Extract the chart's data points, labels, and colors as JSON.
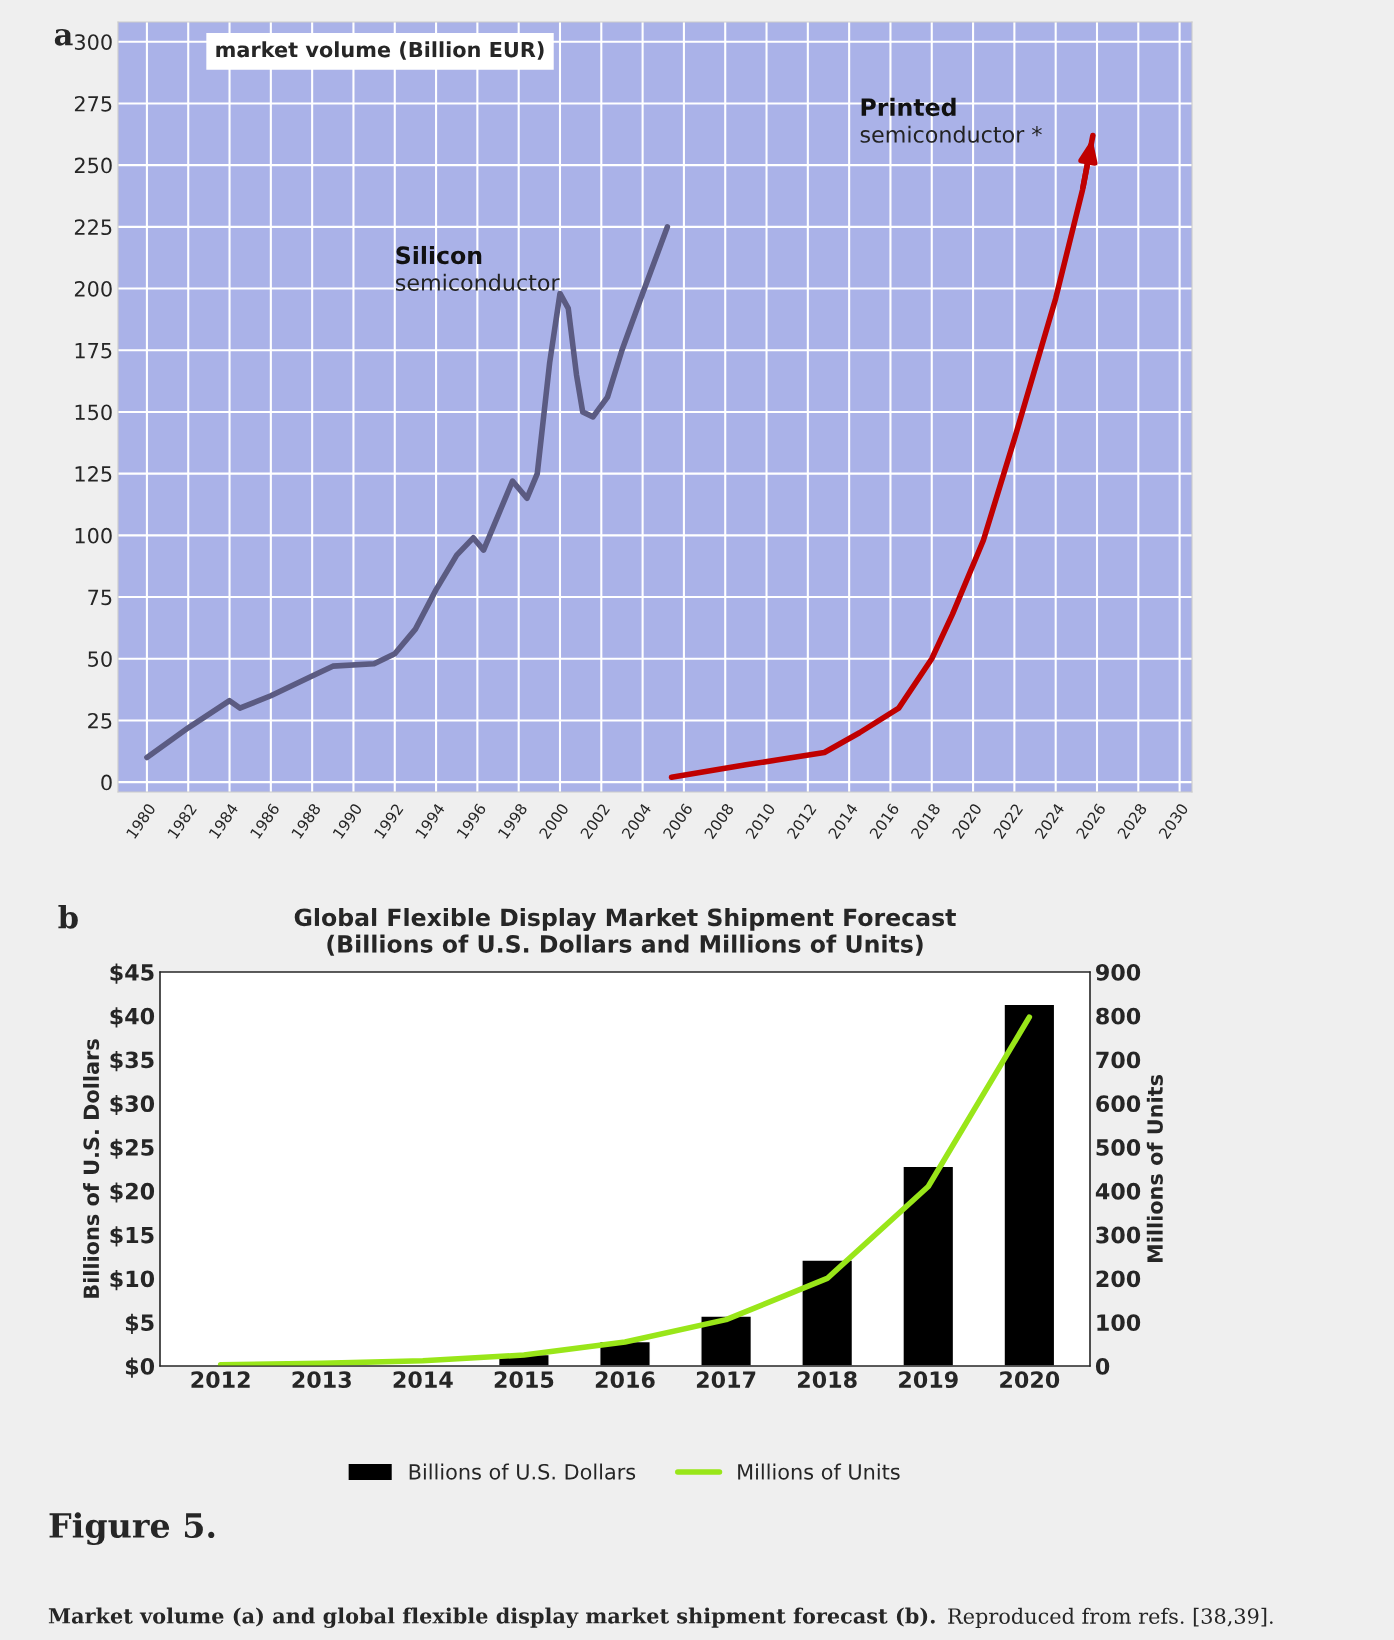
{
  "chart_data": [
    {
      "type": "line",
      "ylabel": "market volume (Billion EUR)",
      "annotations": [
        "a"
      ],
      "xlim": [
        1978.6,
        2030.6
      ],
      "xticks": [
        1980,
        1982,
        1984,
        1986,
        1988,
        1990,
        1992,
        1994,
        1996,
        1998,
        2000,
        2002,
        2004,
        2006,
        2008,
        2010,
        2012,
        2014,
        2016,
        2018,
        2020,
        2022,
        2024,
        2026,
        2028,
        2030
      ],
      "ylim": [
        -4,
        308
      ],
      "yticks": [
        0,
        25,
        50,
        75,
        100,
        125,
        150,
        175,
        200,
        225,
        250,
        275,
        300
      ],
      "grid": true,
      "legend": false,
      "series": [
        {
          "name": "Silicon\nsemiconductor",
          "color": "#5b5b82",
          "x": [
            1980,
            1982,
            1984,
            1984.5,
            1986,
            1988,
            1989,
            1991,
            1992,
            1993,
            1994,
            1995,
            1995.8,
            1996.3,
            1997,
            1997.7,
            1998.4,
            1998.9,
            1999.5,
            2000,
            2000.4,
            2000.8,
            2001.1,
            2001.6,
            2002.3,
            2003,
            2004,
            2005.2
          ],
          "values": [
            10,
            22,
            33,
            30,
            35,
            43,
            47,
            48,
            52,
            62,
            78,
            92,
            99,
            94,
            108,
            122,
            115,
            125,
            170,
            198,
            192,
            165,
            150,
            148,
            156,
            175,
            198,
            225
          ]
        },
        {
          "name": "Printed\nsemiconductor *",
          "color": "#c00000",
          "x": [
            2005.4,
            2009,
            2012.8,
            2014.5,
            2016.4,
            2018,
            2019,
            2020.5,
            2022,
            2024,
            2025.3,
            2025.8
          ],
          "values": [
            2,
            7,
            12,
            20,
            30,
            50,
            68,
            98,
            139,
            196,
            240,
            262
          ]
        }
      ]
    },
    {
      "type": "bar",
      "title": "Global Flexible Display Market Shipment Forecast\n(Billions of U.S. Dollars and Millions of Units)",
      "ylabel": "Billions of U.S. Dollars",
      "y2label": "Millions of Units",
      "annotations": [
        "b",
        "Figure 5.",
        "Market volume (a) and global flexible display market shipment forecast (b).",
        "Reproduced from refs. [38,39]."
      ],
      "categories": [
        "2012",
        "2013",
        "2014",
        "2015",
        "2016",
        "2017",
        "2018",
        "2019",
        "2020"
      ],
      "ylim": [
        0,
        45
      ],
      "yticks": [
        {
          "value": 0,
          "label": "$0"
        },
        {
          "value": 5,
          "label": "$5"
        },
        {
          "value": 10,
          "label": "$10"
        },
        {
          "value": 15,
          "label": "$15"
        },
        {
          "value": 20,
          "label": "$20"
        },
        {
          "value": 25,
          "label": "$25"
        },
        {
          "value": 30,
          "label": "$30"
        },
        {
          "value": 35,
          "label": "$35"
        },
        {
          "value": 40,
          "label": "$40"
        },
        {
          "value": 45,
          "label": "$45"
        }
      ],
      "y2lim": [
        0,
        900
      ],
      "y2ticks": [
        0,
        100,
        200,
        300,
        400,
        500,
        600,
        700,
        800,
        900
      ],
      "grid": false,
      "legend": "bottom",
      "series": [
        {
          "name": "Billions of U.S. Dollars",
          "color": "#000000",
          "values": [
            null,
            null,
            null,
            1.3,
            2.8,
            5.7,
            12.1,
            22.8,
            41.3
          ]
        },
        {
          "name": "Millions of Units",
          "type": "line",
          "axis": "y2",
          "color": "#99e619",
          "values": [
            3,
            6,
            12,
            25,
            55,
            106,
            200,
            410,
            797
          ]
        }
      ]
    }
  ]
}
